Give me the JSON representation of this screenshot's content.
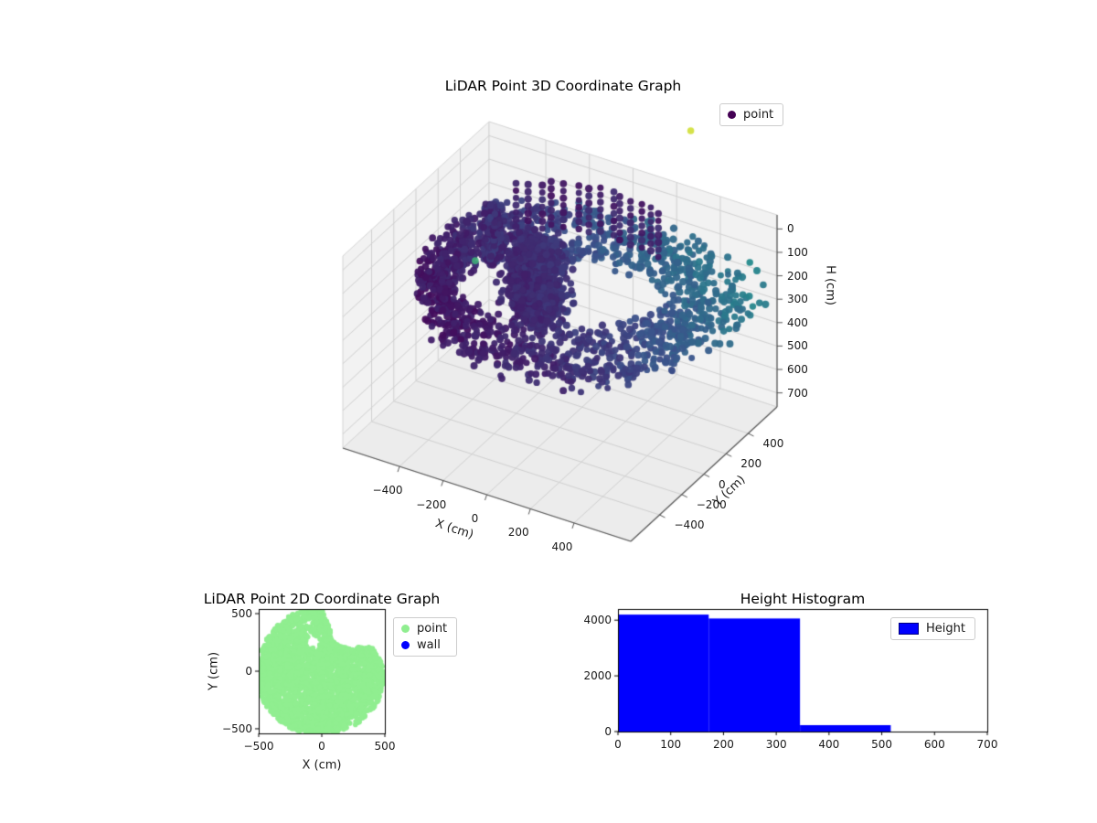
{
  "figure": {
    "background": "#ffffff"
  },
  "chart_data": [
    {
      "type": "scatter3d",
      "title": "LiDAR Point 3D Coordinate Graph",
      "xlabel": "X (cm)",
      "ylabel": "Y (cm)",
      "zlabel": "H (cm)",
      "xlim": [
        -660,
        660
      ],
      "ylim": [
        -660,
        660
      ],
      "zlim": [
        0,
        700
      ],
      "z_axis_inverted": true,
      "xticks": [
        -400,
        -200,
        0,
        200,
        400
      ],
      "yticks": [
        -400,
        -200,
        0,
        200,
        400
      ],
      "zticks": [
        0,
        100,
        200,
        300,
        400,
        500,
        600,
        700
      ],
      "legend": [
        {
          "label": "point",
          "marker_color": "#440154"
        }
      ],
      "legend_position": "upper right",
      "colormap": "viridis",
      "colormap_stops": [
        {
          "t": 0.0,
          "color": "#440154"
        },
        {
          "t": 0.25,
          "color": "#3b528b"
        },
        {
          "t": 0.5,
          "color": "#21918c"
        },
        {
          "t": 0.75,
          "color": "#5ec962"
        },
        {
          "t": 1.0,
          "color": "#fde725"
        }
      ],
      "view": {
        "elev": 30,
        "azim": -60
      },
      "point_cloud": {
        "description": "Ring-shaped indoor LiDAR scan; dense dark-purple mass left of center, steel-blue arcs on the right, short vertical dot columns at the back, one pale-yellow outlier above the box and one teal outlier at the left wall",
        "seed": 20240612,
        "ring": {
          "count": 1500,
          "r_base": 470,
          "r_spread": 120,
          "bump_deg": 35,
          "bump_sigma_deg": 28,
          "bump_r": 280,
          "h_min": 80,
          "h_max": 300
        },
        "blob": {
          "count": 900,
          "cx": -140,
          "cy": 60,
          "sx": 180,
          "sy": 150,
          "h_min": 30,
          "h_max": 330
        },
        "blob2": {
          "count": 250,
          "cx": -40,
          "cy": -120,
          "sx": 140,
          "sy": 120,
          "h_min": 100,
          "h_max": 300
        },
        "wall_cluster": {
          "count": 300,
          "cx": -430,
          "cy": 240,
          "sx": 45,
          "sy": 60,
          "h_min": 40,
          "h_max": 280
        },
        "columns": {
          "count": 14,
          "theta_min_deg": 70,
          "theta_max_deg": 135,
          "r_min": 540,
          "r_max": 580,
          "h_min": 15,
          "h_max": 200,
          "dots": 7
        },
        "outliers": [
          {
            "x": 300,
            "y": 590,
            "h": -341,
            "c": 0.93
          },
          {
            "x": -388,
            "y": 0,
            "h": 165,
            "c": 0.62
          }
        ]
      }
    },
    {
      "type": "scatter",
      "title": "LiDAR Point 2D Coordinate Graph",
      "xlabel": "X (cm)",
      "ylabel": "Y (cm)",
      "xlim": [
        -500,
        500
      ],
      "ylim": [
        -540,
        540
      ],
      "xticks": [
        -500,
        0,
        500
      ],
      "yticks": [
        -500,
        0,
        500
      ],
      "legend": [
        {
          "label": "point",
          "marker_color": "#90ee90"
        },
        {
          "label": "wall",
          "marker_color": "#0000ff"
        }
      ],
      "point_region": {
        "description": "Solid light-green disc of overlapping scatter points filling most of the axes, with a white notch at the top-right and a small round white hole left of center-top; no blue wall points visible",
        "seed": 99,
        "count": 3200,
        "dot_color": "#90ee90",
        "center": [
          0,
          -25
        ],
        "radius_by_angle_deg_step15": [
          500,
          480,
          460,
          310,
          280,
          300,
          560,
          570,
          570,
          550,
          530,
          510,
          505,
          515,
          520,
          525,
          530,
          525,
          515,
          515,
          515,
          510,
          505,
          500
        ],
        "hole": {
          "cx": -75,
          "cy": 255,
          "r": 52
        }
      }
    },
    {
      "type": "histogram",
      "title": "Height Histogram",
      "xlabel": "",
      "ylabel": "",
      "xlim": [
        0,
        700
      ],
      "ylim": [
        0,
        4400
      ],
      "xticks": [
        0,
        100,
        200,
        300,
        400,
        500,
        600,
        700
      ],
      "yticks": [
        0,
        2000,
        4000
      ],
      "bar_color": "#0000ff",
      "legend": [
        {
          "label": "Height",
          "marker_color": "#0000ff"
        }
      ],
      "bins": [
        {
          "from": 0,
          "to": 172,
          "count": 4200
        },
        {
          "from": 172,
          "to": 345,
          "count": 4060
        },
        {
          "from": 345,
          "to": 517,
          "count": 230
        }
      ]
    }
  ]
}
